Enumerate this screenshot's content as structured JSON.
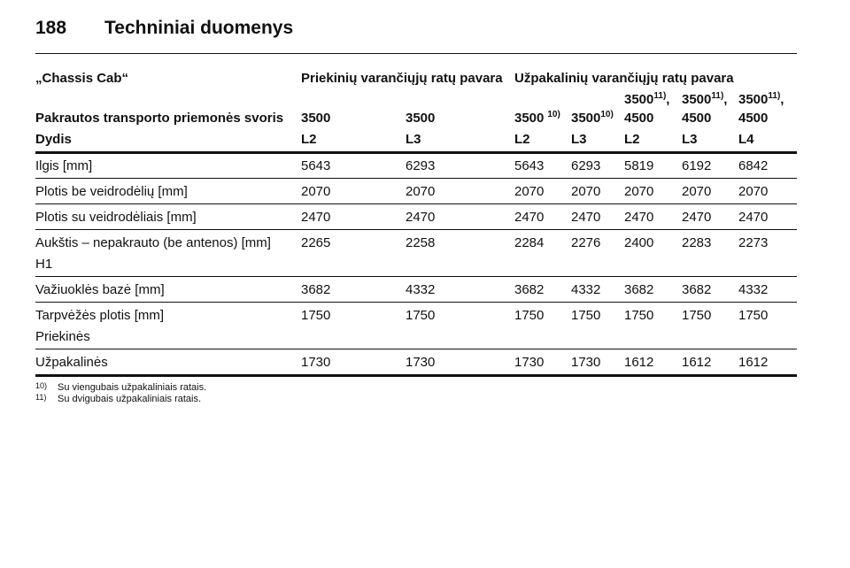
{
  "header": {
    "page_number": "188",
    "title": "Techniniai duomenys"
  },
  "table": {
    "group_row": {
      "label": "„Chassis Cab“",
      "front": "Priekinių varančiųjų ratų pavara",
      "rear": "Užpakalinių varančiųjų ratų pavara"
    },
    "weight_row": {
      "label": "Pakrautos transporto priemonės svoris",
      "values": [
        {
          "main": "3500"
        },
        {
          "main": "3500"
        },
        {
          "main": "3500",
          "note": "10)"
        },
        {
          "main": "3500",
          "note": "10)"
        },
        {
          "main": "3500",
          "note": "11)",
          "sep": ",",
          "line2": "4500"
        },
        {
          "main": "3500",
          "note": "11)",
          "sep": ",",
          "line2": "4500"
        },
        {
          "main": "3500",
          "note": "11)",
          "sep": ",",
          "line2": "4500"
        }
      ]
    },
    "size_row": {
      "label": "Dydis",
      "values": [
        "L2",
        "L3",
        "L2",
        "L3",
        "L2",
        "L3",
        "L4"
      ]
    },
    "rows": [
      {
        "label": "Ilgis [mm]",
        "values": [
          5643,
          6293,
          5643,
          6293,
          5819,
          6192,
          6842
        ]
      },
      {
        "label": "Plotis be veidrodėlių [mm]",
        "values": [
          2070,
          2070,
          2070,
          2070,
          2070,
          2070,
          2070
        ]
      },
      {
        "label": "Plotis su veidrodėliais [mm]",
        "values": [
          2470,
          2470,
          2470,
          2470,
          2470,
          2470,
          2470
        ]
      },
      {
        "label": "Aukštis – nepakrauto (be antenos) [mm]",
        "sub": "H1",
        "values": [
          2265,
          2258,
          2284,
          2276,
          2400,
          2283,
          2273
        ]
      },
      {
        "label": "Važiuoklės bazė [mm]",
        "values": [
          3682,
          4332,
          3682,
          4332,
          3682,
          3682,
          4332
        ]
      },
      {
        "label": "Tarpvėžės plotis [mm]",
        "sub": "Priekinės",
        "values": [
          1750,
          1750,
          1750,
          1750,
          1750,
          1750,
          1750
        ]
      },
      {
        "label": "Užpakalinės",
        "values": [
          1730,
          1730,
          1730,
          1730,
          1612,
          1612,
          1612
        ]
      }
    ]
  },
  "footnotes": [
    {
      "mark": "10)",
      "text": "Su viengubais užpakaliniais ratais."
    },
    {
      "mark": "11)",
      "text": "Su dvigubais užpakaliniais ratais."
    }
  ]
}
